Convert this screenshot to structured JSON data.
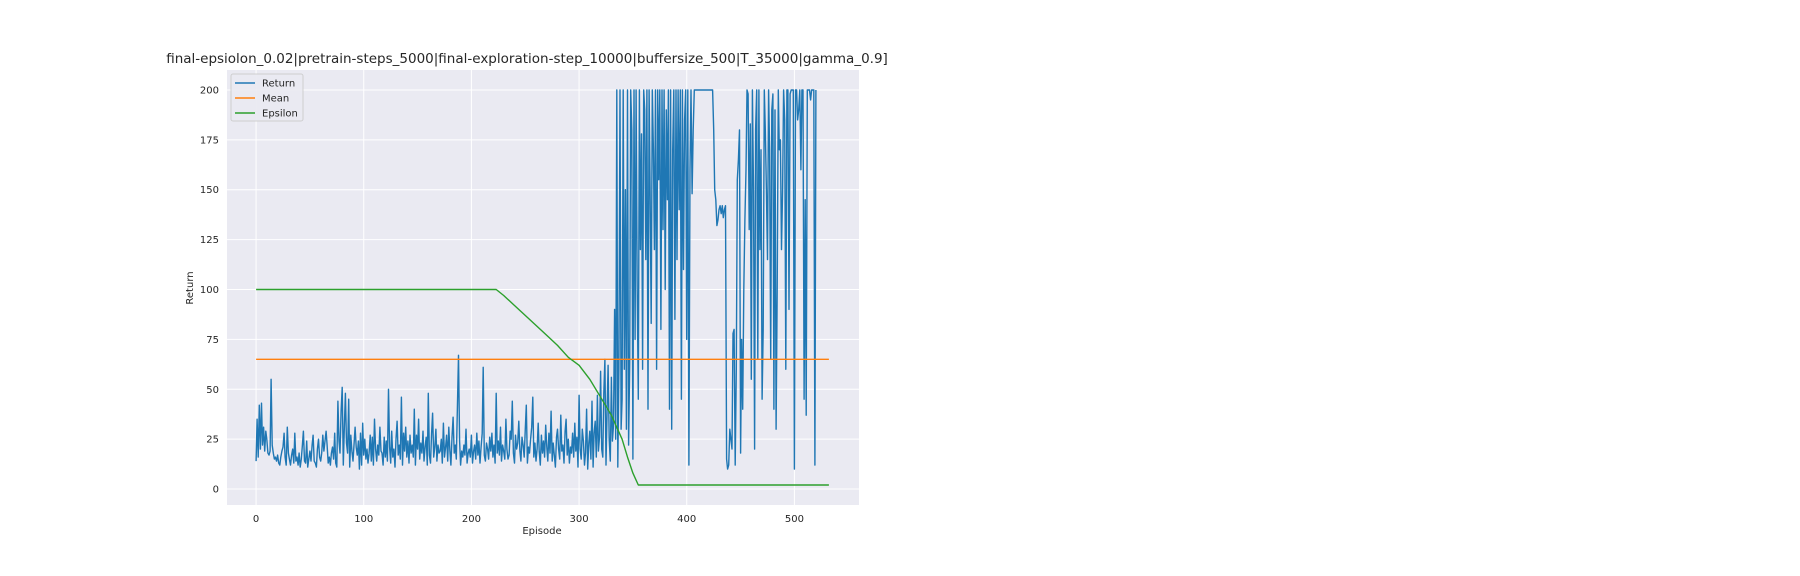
{
  "chart_data": {
    "type": "line",
    "title": "final-epsiolon_0.02|pretrain-steps_5000|final-exploration-step_10000|buffersize_500|T_35000|gamma_0.9]",
    "xlabel": "Episode",
    "ylabel": "Return",
    "xlim": [
      -27,
      560
    ],
    "ylim": [
      -8,
      210
    ],
    "xticks": [
      0,
      100,
      200,
      300,
      400,
      500
    ],
    "yticks": [
      0,
      25,
      50,
      75,
      100,
      125,
      150,
      175,
      200
    ],
    "grid": true,
    "legend_position": "top-left",
    "colors": {
      "Return": "#1f77b4",
      "Mean": "#ff7f0e",
      "Epsilon": "#2ca02c",
      "background": "#eaeaf2",
      "grid": "#ffffff"
    },
    "series": [
      {
        "name": "Return",
        "x_start": 0,
        "values": [
          14,
          35,
          16,
          42,
          20,
          43,
          22,
          31,
          19,
          29,
          25,
          18,
          17,
          19,
          55,
          22,
          18,
          15,
          16,
          14,
          17,
          13,
          12,
          16,
          19,
          21,
          28,
          16,
          12,
          31,
          18,
          15,
          12,
          17,
          20,
          13,
          28,
          14,
          16,
          12,
          18,
          11,
          15,
          22,
          29,
          14,
          13,
          24,
          11,
          15,
          19,
          14,
          22,
          27,
          14,
          13,
          11,
          20,
          25,
          16,
          14,
          18,
          27,
          19,
          24,
          29,
          22,
          13,
          16,
          12,
          18,
          21,
          15,
          28,
          13,
          11,
          44,
          24,
          18,
          39,
          51,
          12,
          32,
          48,
          23,
          18,
          45,
          11,
          27,
          19,
          14,
          22,
          31,
          21,
          17,
          24,
          10,
          28,
          12,
          33,
          17,
          25,
          15,
          20,
          13,
          18,
          27,
          14,
          26,
          12,
          35,
          20,
          14,
          22,
          17,
          31,
          19,
          18,
          12,
          26,
          16,
          24,
          14,
          50,
          21,
          13,
          29,
          16,
          20,
          11,
          25,
          34,
          17,
          22,
          15,
          46,
          12,
          28,
          19,
          31,
          16,
          24,
          13,
          27,
          18,
          22,
          16,
          40,
          12,
          27,
          20,
          35,
          15,
          23,
          18,
          29,
          14,
          21,
          26,
          12,
          48,
          17,
          13,
          28,
          38,
          16,
          21,
          30,
          14,
          22,
          18,
          19,
          25,
          13,
          33,
          16,
          21,
          27,
          14,
          31,
          19,
          12,
          26,
          36,
          18,
          22,
          15,
          41,
          67,
          24,
          12,
          19,
          16,
          22,
          17,
          30,
          13,
          18,
          20,
          16,
          27,
          13,
          19,
          22,
          15,
          28,
          17,
          24,
          13,
          21,
          28,
          61,
          17,
          14,
          23,
          20,
          15,
          26,
          19,
          28,
          16,
          22,
          13,
          48,
          18,
          24,
          17,
          31,
          14,
          22,
          19,
          15,
          35,
          20,
          15,
          17,
          29,
          25,
          44,
          18,
          13,
          27,
          20,
          23,
          34,
          19,
          14,
          26,
          22,
          16,
          29,
          42,
          13,
          21,
          18,
          25,
          31,
          46,
          16,
          23,
          14,
          20,
          33,
          19,
          12,
          27,
          18,
          24,
          16,
          32,
          21,
          14,
          28,
          18,
          39,
          14,
          23,
          17,
          11,
          26,
          30,
          20,
          15,
          37,
          19,
          22,
          13,
          29,
          35,
          17,
          25,
          13,
          21,
          18,
          28,
          16,
          33,
          19,
          26,
          11,
          47,
          20,
          15,
          30,
          24,
          12,
          18,
          40,
          10,
          23,
          29,
          15,
          44,
          11,
          28,
          34,
          16,
          47,
          19,
          26,
          59,
          20,
          16,
          48,
          65,
          12,
          40,
          62,
          25,
          14,
          56,
          24,
          32,
          90,
          25,
          200,
          11,
          60,
          200,
          30,
          45,
          200,
          60,
          150,
          30,
          200,
          22,
          63,
          200,
          180,
          15,
          200,
          75,
          200,
          100,
          45,
          200,
          120,
          178,
          60,
          200,
          190,
          115,
          200,
          40,
          200,
          150,
          83,
          200,
          170,
          120,
          200,
          60,
          200,
          155,
          200,
          80,
          200,
          130,
          200,
          100,
          190,
          145,
          200,
          40,
          200,
          30,
          170,
          200,
          85,
          200,
          115,
          200,
          140,
          200,
          45,
          200,
          110,
          185,
          200,
          75,
          200,
          12,
          160,
          200,
          148,
          180,
          200,
          200,
          200,
          200,
          200,
          200,
          200,
          200,
          200,
          200,
          200,
          200,
          200,
          200,
          200,
          200,
          200,
          200,
          180,
          150,
          145,
          132,
          135,
          140,
          142,
          138,
          142,
          136,
          140,
          142,
          15,
          10,
          12,
          30,
          25,
          20,
          78,
          80,
          12,
          60,
          155,
          165,
          180,
          18,
          75,
          40,
          100,
          135,
          160,
          200,
          198,
          130,
          183,
          55,
          200,
          150,
          20,
          180,
          200,
          65,
          200,
          120,
          170,
          45,
          80,
          200,
          180,
          150,
          115,
          200,
          170,
          65,
          190,
          198,
          40,
          190,
          30,
          100,
          200,
          170,
          175,
          120,
          150,
          200,
          185,
          60,
          200,
          200,
          90,
          198,
          200,
          200,
          200,
          10,
          200,
          200,
          185,
          190,
          200,
          160,
          200,
          200,
          45,
          145,
          37,
          200,
          200,
          200,
          195,
          200,
          200,
          200,
          12,
          200
        ]
      },
      {
        "name": "Mean",
        "x": [
          0,
          532
        ],
        "y": [
          65,
          65
        ]
      },
      {
        "name": "Epsilon",
        "x": [
          0,
          223,
          230,
          240,
          250,
          260,
          270,
          280,
          290,
          300,
          310,
          320,
          330,
          340,
          345,
          350,
          355,
          532
        ],
        "y": [
          100,
          100,
          97,
          92,
          87,
          82,
          77,
          72,
          66,
          62,
          55,
          46,
          37,
          25,
          16,
          8,
          2,
          2
        ]
      }
    ]
  }
}
